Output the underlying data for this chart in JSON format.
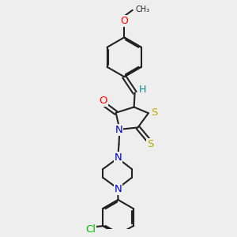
{
  "bg_color": "#eeeeee",
  "bond_color": "#222222",
  "bond_width": 1.5,
  "dbo": 0.035,
  "atom_colors": {
    "O": "#ff0000",
    "N": "#0000cc",
    "S": "#bbaa00",
    "Cl": "#00bb00",
    "H": "#008888",
    "C": "#222222"
  }
}
